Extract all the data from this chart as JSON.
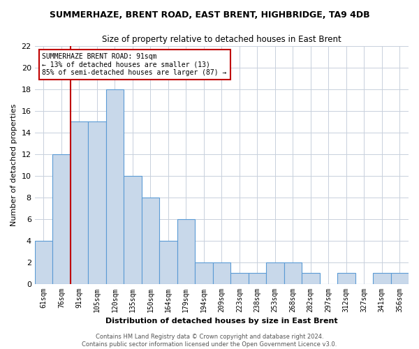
{
  "title": "SUMMERHAZE, BRENT ROAD, EAST BRENT, HIGHBRIDGE, TA9 4DB",
  "subtitle": "Size of property relative to detached houses in East Brent",
  "xlabel": "Distribution of detached houses by size in East Brent",
  "ylabel": "Number of detached properties",
  "bar_labels": [
    "61sqm",
    "76sqm",
    "91sqm",
    "105sqm",
    "120sqm",
    "135sqm",
    "150sqm",
    "164sqm",
    "179sqm",
    "194sqm",
    "209sqm",
    "223sqm",
    "238sqm",
    "253sqm",
    "268sqm",
    "282sqm",
    "297sqm",
    "312sqm",
    "327sqm",
    "341sqm",
    "356sqm"
  ],
  "bar_values": [
    4,
    12,
    15,
    15,
    18,
    10,
    8,
    4,
    6,
    2,
    2,
    1,
    1,
    2,
    2,
    1,
    0,
    1,
    0,
    1,
    1
  ],
  "bar_color": "#c8d8ea",
  "bar_edge_color": "#5b9bd5",
  "ylim": [
    0,
    22
  ],
  "yticks": [
    0,
    2,
    4,
    6,
    8,
    10,
    12,
    14,
    16,
    18,
    20,
    22
  ],
  "property_line_color": "#c00000",
  "property_line_index": 1.5,
  "annotation_line1": "SUMMERHAZE BRENT ROAD: 91sqm",
  "annotation_line2": "← 13% of detached houses are smaller (13)",
  "annotation_line3": "85% of semi-detached houses are larger (87) →",
  "annotation_box_color": "#ffffff",
  "annotation_box_edge": "#c00000",
  "footer_text": "Contains HM Land Registry data © Crown copyright and database right 2024.\nContains public sector information licensed under the Open Government Licence v3.0.",
  "bg_color": "#ffffff",
  "grid_color": "#c8d0dc"
}
